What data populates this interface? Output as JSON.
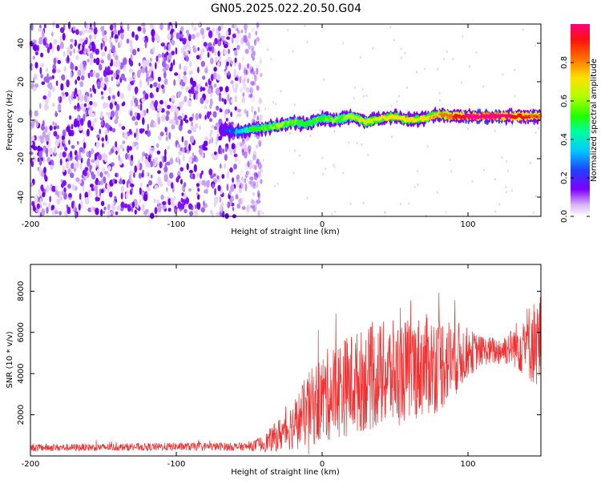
{
  "figure_title": "GN05.2025.022.20.50.G04",
  "chart_data": [
    {
      "type": "heatmap",
      "xlabel": "Height of straight line (km)",
      "ylabel": "Frequency (Hz)",
      "xlim": [
        -200,
        150
      ],
      "ylim": [
        -50,
        50
      ],
      "xticks": [
        -200,
        -100,
        0,
        100
      ],
      "yticks": [
        -40,
        -20,
        0,
        20,
        40
      ],
      "colorbar": {
        "label": "Normalized spectral amplitude",
        "range": [
          0,
          1
        ],
        "ticks": [
          "0.0",
          "0.2",
          "0.4",
          "0.6",
          "0.8"
        ]
      },
      "noise_region_x": [
        -200,
        -45
      ],
      "ridge": {
        "x": [
          -70,
          -60,
          -50,
          -40,
          -30,
          -20,
          -10,
          0,
          10,
          20,
          30,
          40,
          50,
          60,
          70,
          80,
          90,
          100,
          110,
          120,
          130,
          140,
          150
        ],
        "frequency": [
          -5,
          -6,
          -5,
          -4,
          -3,
          -1,
          -2,
          1,
          0,
          2,
          -1,
          1,
          2,
          0,
          1,
          3,
          2,
          2,
          2,
          2,
          2,
          2,
          2
        ],
        "amplitude": [
          0.2,
          0.3,
          0.45,
          0.55,
          0.6,
          0.55,
          0.5,
          0.55,
          0.55,
          0.6,
          0.65,
          0.65,
          0.7,
          0.7,
          0.7,
          0.75,
          0.8,
          0.95,
          1.0,
          1.0,
          0.9,
          0.85,
          0.8
        ]
      }
    },
    {
      "type": "line",
      "xlabel": "Height of straight line (km)",
      "ylabel": "SNR (10 * v/v)",
      "xlim": [
        -200,
        150
      ],
      "ylim": [
        0,
        9300
      ],
      "xticks": [
        -200,
        -100,
        0,
        100
      ],
      "yticks": [
        2000,
        4000,
        6000,
        8000
      ],
      "color": "#f03030",
      "series": [
        {
          "x": [
            -200,
            -150,
            -100,
            -50,
            -40,
            -30,
            -20,
            -10,
            0,
            10,
            20,
            30,
            40,
            50,
            60,
            70,
            80,
            90,
            100,
            110,
            120,
            130,
            140,
            150
          ],
          "mean": [
            400,
            420,
            450,
            450,
            600,
            1000,
            1500,
            2200,
            2800,
            3200,
            3500,
            3700,
            3900,
            4000,
            4200,
            4400,
            4500,
            4700,
            5000,
            5100,
            5100,
            5300,
            5500,
            5500
          ],
          "spread": [
            180,
            180,
            200,
            200,
            400,
            800,
            1200,
            1800,
            2200,
            2400,
            2500,
            2500,
            2600,
            2600,
            2500,
            2500,
            2400,
            2000,
            1200,
            700,
            700,
            900,
            1800,
            2400
          ]
        }
      ]
    }
  ]
}
